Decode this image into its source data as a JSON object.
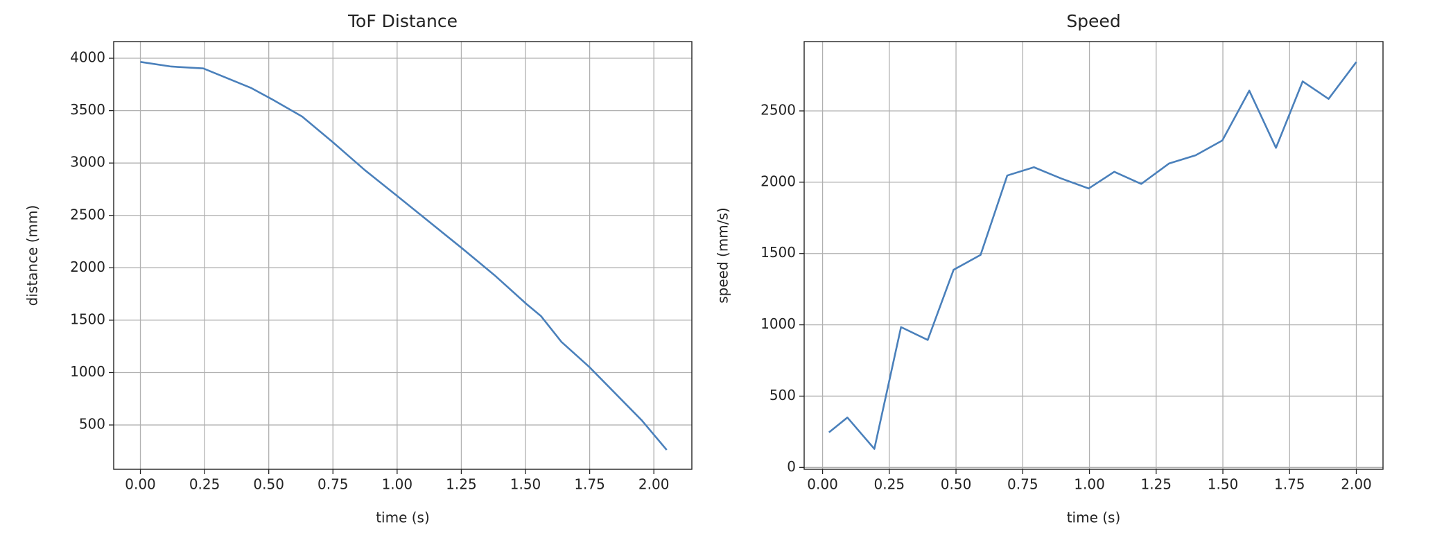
{
  "chart_data": [
    {
      "type": "line",
      "title": "ToF Distance",
      "x_label": "time (s)",
      "y_label": "distance (mm)",
      "x": [
        0,
        0.12,
        0.245,
        0.43,
        0.51,
        0.63,
        0.75,
        0.874,
        1.0,
        1.25,
        1.38,
        1.504,
        1.56,
        1.64,
        1.748,
        1.953,
        2.05
      ],
      "series": [
        {
          "name": "distance",
          "color": "#4a80bb",
          "values": [
            3965,
            3921,
            3903,
            3718,
            3612,
            3444,
            3198,
            2933,
            2686,
            2192,
            1928,
            1654,
            1540,
            1293,
            1055,
            544,
            262
          ]
        }
      ],
      "xlim": [
        -0.104,
        2.148
      ],
      "ylim": [
        77,
        4159
      ],
      "xticks": [
        {
          "value": 0,
          "label": "0.00"
        },
        {
          "value": 0.25,
          "label": "0.25"
        },
        {
          "value": 0.5,
          "label": "0.50"
        },
        {
          "value": 0.75,
          "label": "0.75"
        },
        {
          "value": 1,
          "label": "1.00"
        },
        {
          "value": 1.25,
          "label": "1.25"
        },
        {
          "value": 1.5,
          "label": "1.50"
        },
        {
          "value": 1.75,
          "label": "1.75"
        },
        {
          "value": 2,
          "label": "2.00"
        }
      ],
      "yticks": [
        500,
        1000,
        1500,
        2000,
        2500,
        3000,
        3500,
        4000
      ],
      "grid": true
    },
    {
      "type": "line",
      "title": "Speed",
      "x_label": "time (s)",
      "y_label": "speed (mm/s)",
      "x": [
        0.024,
        0.093,
        0.194,
        0.294,
        0.394,
        0.491,
        0.592,
        0.692,
        0.792,
        0.893,
        0.997,
        1.093,
        1.194,
        1.298,
        1.398,
        1.498,
        1.599,
        1.699,
        1.799,
        1.896,
        2.0
      ],
      "series": [
        {
          "name": "speed",
          "color": "#4a80bb",
          "values": [
            246,
            350,
            130,
            984,
            894,
            1386,
            1490,
            2047,
            2105,
            2027,
            1956,
            2073,
            1988,
            2131,
            2189,
            2293,
            2642,
            2241,
            2707,
            2584,
            2843
          ]
        }
      ],
      "xlim": [
        -0.069,
        2.1
      ],
      "ylim": [
        -13,
        2986
      ],
      "xticks": [
        {
          "value": 0,
          "label": "0.00"
        },
        {
          "value": 0.25,
          "label": "0.25"
        },
        {
          "value": 0.5,
          "label": "0.50"
        },
        {
          "value": 0.75,
          "label": "0.75"
        },
        {
          "value": 1,
          "label": "1.00"
        },
        {
          "value": 1.25,
          "label": "1.25"
        },
        {
          "value": 1.5,
          "label": "1.50"
        },
        {
          "value": 1.75,
          "label": "1.75"
        },
        {
          "value": 2,
          "label": "2.00"
        }
      ],
      "yticks": [
        0,
        500,
        1000,
        1500,
        2000,
        2500
      ],
      "grid": true
    }
  ]
}
